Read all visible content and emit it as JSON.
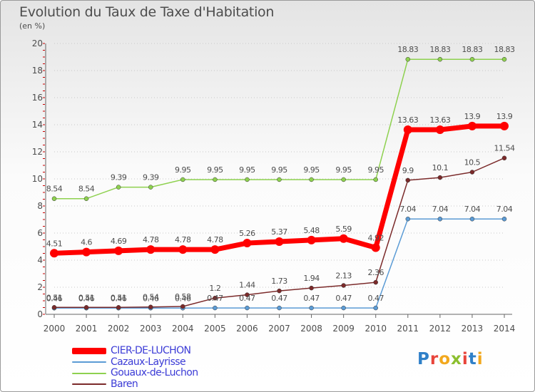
{
  "chart_data": {
    "type": "line",
    "title": "Evolution du Taux de Taxe d'Habitation",
    "subtitle": "(en %)",
    "xlabel": "",
    "ylabel": "",
    "x": [
      "2000",
      "2001",
      "2002",
      "2003",
      "2004",
      "2005",
      "2006",
      "2007",
      "2008",
      "2009",
      "2010",
      "2011",
      "2012",
      "2013",
      "2014"
    ],
    "ylim": [
      0,
      20
    ],
    "yticks": [
      "0",
      "2",
      "4",
      "6",
      "8",
      "10",
      "12",
      "14",
      "16",
      "18",
      "20"
    ],
    "grid": "horizontal-dotted",
    "legend_position": "bottom-left",
    "series": [
      {
        "name": "CIER-DE-LUCHON",
        "color": "#ff0000",
        "emphasis": true,
        "values": [
          4.51,
          4.6,
          4.69,
          4.78,
          4.78,
          4.78,
          5.26,
          5.37,
          5.48,
          5.59,
          4.92,
          13.63,
          13.63,
          13.9,
          13.9
        ],
        "labels": [
          "4.51",
          "4.6",
          "4.69",
          "4.78",
          "4.78",
          "4.78",
          "5.26",
          "5.37",
          "5.48",
          "5.59",
          "4.92",
          "13.63",
          "13.63",
          "13.9",
          "13.9"
        ]
      },
      {
        "name": "Cazaux-Layrisse",
        "color": "#5b9bd5",
        "emphasis": false,
        "values": [
          0.46,
          0.46,
          0.46,
          0.46,
          0.46,
          0.47,
          0.47,
          0.47,
          0.47,
          0.47,
          0.47,
          7.04,
          7.04,
          7.04,
          7.04
        ],
        "labels": [
          "0.46",
          "0.46",
          "0.46",
          "0.46",
          "0.46",
          "0.47",
          "0.47",
          "0.47",
          "0.47",
          "0.47",
          "0.47",
          "7.04",
          "7.04",
          "7.04",
          "7.04"
        ]
      },
      {
        "name": "Gouaux-de-Luchon",
        "color": "#8ed14f",
        "emphasis": false,
        "values": [
          8.54,
          8.54,
          9.39,
          9.39,
          9.95,
          9.95,
          9.95,
          9.95,
          9.95,
          9.95,
          9.95,
          18.83,
          18.83,
          18.83,
          18.83
        ],
        "labels": [
          "8.54",
          "8.54",
          "9.39",
          "9.39",
          "9.95",
          "9.95",
          "9.95",
          "9.95",
          "9.95",
          "9.95",
          "9.95",
          "18.83",
          "18.83",
          "18.83",
          "18.83"
        ]
      },
      {
        "name": "Baren",
        "color": "#7b2a2a",
        "emphasis": false,
        "values": [
          0.51,
          0.51,
          0.51,
          0.54,
          0.58,
          1.2,
          1.44,
          1.73,
          1.94,
          2.13,
          2.36,
          9.9,
          10.1,
          10.5,
          11.54
        ],
        "labels": [
          "0.51",
          "0.51",
          "0.51",
          "0.54",
          "0.58",
          "1.2",
          "1.44",
          "1.73",
          "1.94",
          "2.13",
          "2.36",
          "9.9",
          "10.1",
          "10.5",
          "11.54"
        ]
      }
    ]
  },
  "brand": {
    "letters": [
      "P",
      "r",
      "o",
      "x",
      "i",
      "t",
      "i"
    ],
    "colors": [
      "#2f80c8",
      "#e8443a",
      "#f2a81d",
      "#8cbf2f",
      "#e8443a",
      "#2f80c8",
      "#f2a81d"
    ]
  }
}
